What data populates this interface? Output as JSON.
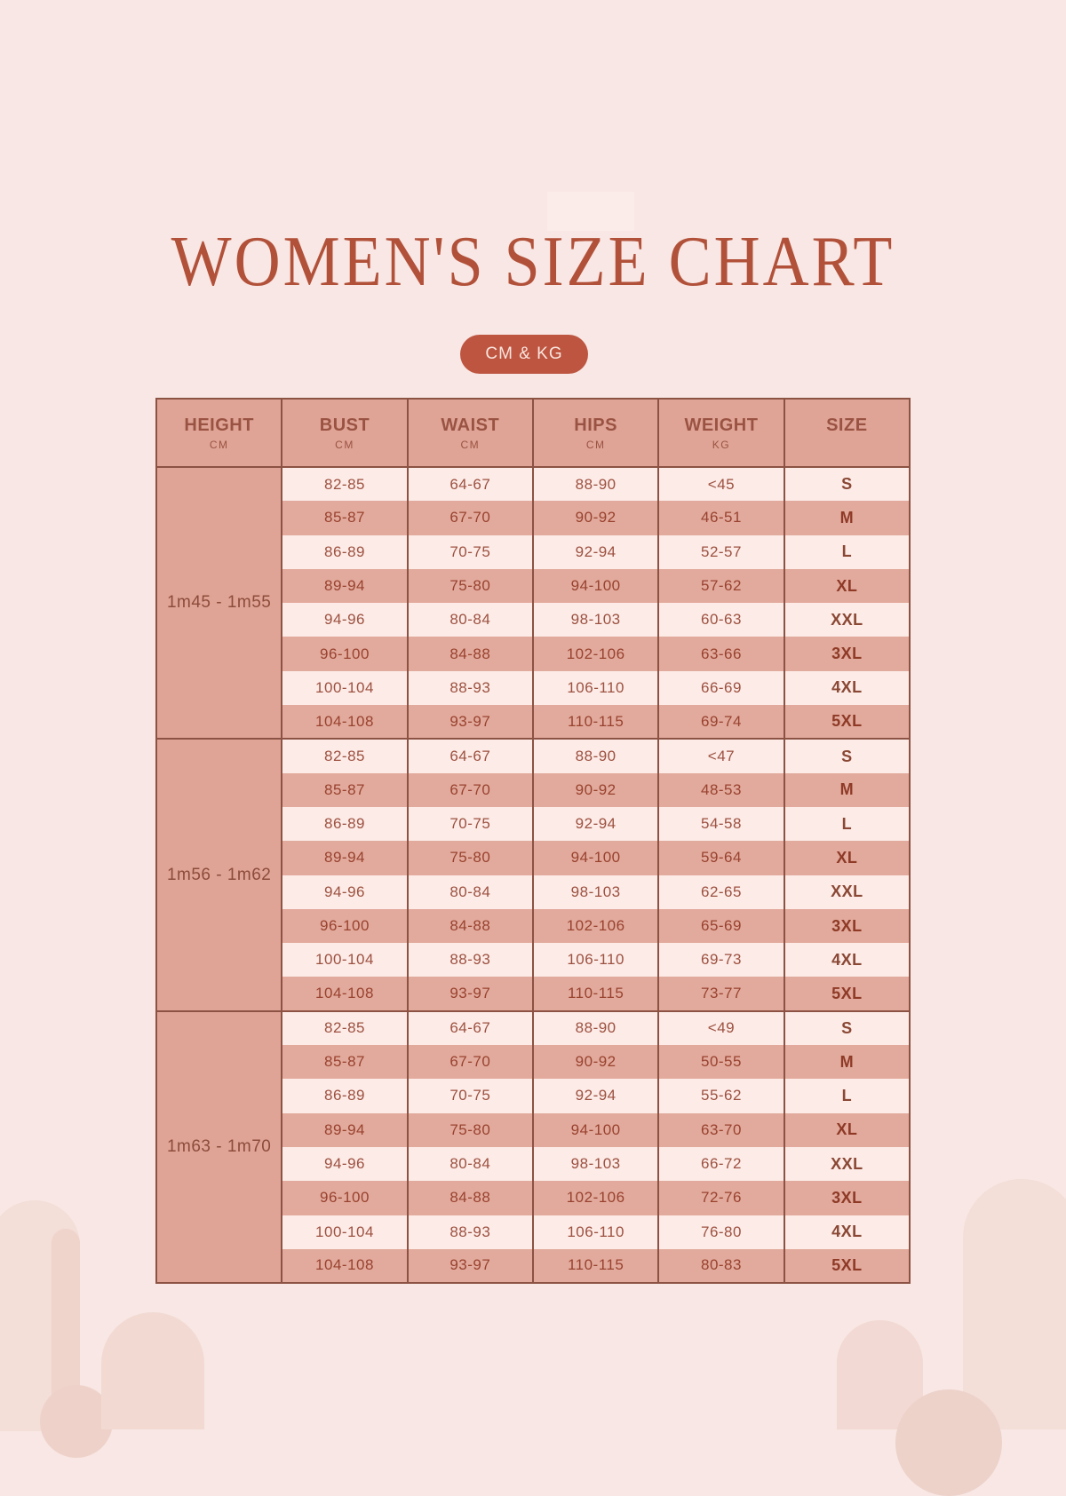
{
  "title": "WOMEN'S SIZE CHART",
  "badge": "CM & KG",
  "colors": {
    "background": "#f8e7e4",
    "accent_terracotta": "#bd5540",
    "title_text": "#b2513a",
    "table_border": "#8c5344",
    "header_bg": "#dfa496",
    "row_light_bg": "#fcebe7",
    "row_dark_bg": "#e2aa9c",
    "cell_text": "#9d5140"
  },
  "chart_data": {
    "type": "table",
    "title": "WOMEN'S SIZE CHART",
    "units_label": "CM & KG",
    "columns": [
      {
        "label": "HEIGHT",
        "unit": "CM"
      },
      {
        "label": "BUST",
        "unit": "CM"
      },
      {
        "label": "WAIST",
        "unit": "CM"
      },
      {
        "label": "HIPS",
        "unit": "CM"
      },
      {
        "label": "WEIGHT",
        "unit": "KG"
      },
      {
        "label": "SIZE",
        "unit": ""
      }
    ],
    "groups": [
      {
        "height": "1m45 - 1m55",
        "rows": [
          [
            "82-85",
            "64-67",
            "88-90",
            "<45",
            "S"
          ],
          [
            "85-87",
            "67-70",
            "90-92",
            "46-51",
            "M"
          ],
          [
            "86-89",
            "70-75",
            "92-94",
            "52-57",
            "L"
          ],
          [
            "89-94",
            "75-80",
            "94-100",
            "57-62",
            "XL"
          ],
          [
            "94-96",
            "80-84",
            "98-103",
            "60-63",
            "XXL"
          ],
          [
            "96-100",
            "84-88",
            "102-106",
            "63-66",
            "3XL"
          ],
          [
            "100-104",
            "88-93",
            "106-110",
            "66-69",
            "4XL"
          ],
          [
            "104-108",
            "93-97",
            "110-115",
            "69-74",
            "5XL"
          ]
        ]
      },
      {
        "height": "1m56 - 1m62",
        "rows": [
          [
            "82-85",
            "64-67",
            "88-90",
            "<47",
            "S"
          ],
          [
            "85-87",
            "67-70",
            "90-92",
            "48-53",
            "M"
          ],
          [
            "86-89",
            "70-75",
            "92-94",
            "54-58",
            "L"
          ],
          [
            "89-94",
            "75-80",
            "94-100",
            "59-64",
            "XL"
          ],
          [
            "94-96",
            "80-84",
            "98-103",
            "62-65",
            "XXL"
          ],
          [
            "96-100",
            "84-88",
            "102-106",
            "65-69",
            "3XL"
          ],
          [
            "100-104",
            "88-93",
            "106-110",
            "69-73",
            "4XL"
          ],
          [
            "104-108",
            "93-97",
            "110-115",
            "73-77",
            "5XL"
          ]
        ]
      },
      {
        "height": "1m63 - 1m70",
        "rows": [
          [
            "82-85",
            "64-67",
            "88-90",
            "<49",
            "S"
          ],
          [
            "85-87",
            "67-70",
            "90-92",
            "50-55",
            "M"
          ],
          [
            "86-89",
            "70-75",
            "92-94",
            "55-62",
            "L"
          ],
          [
            "89-94",
            "75-80",
            "94-100",
            "63-70",
            "XL"
          ],
          [
            "94-96",
            "80-84",
            "98-103",
            "66-72",
            "XXL"
          ],
          [
            "96-100",
            "84-88",
            "102-106",
            "72-76",
            "3XL"
          ],
          [
            "100-104",
            "88-93",
            "106-110",
            "76-80",
            "4XL"
          ],
          [
            "104-108",
            "93-97",
            "110-115",
            "80-83",
            "5XL"
          ]
        ]
      }
    ]
  }
}
